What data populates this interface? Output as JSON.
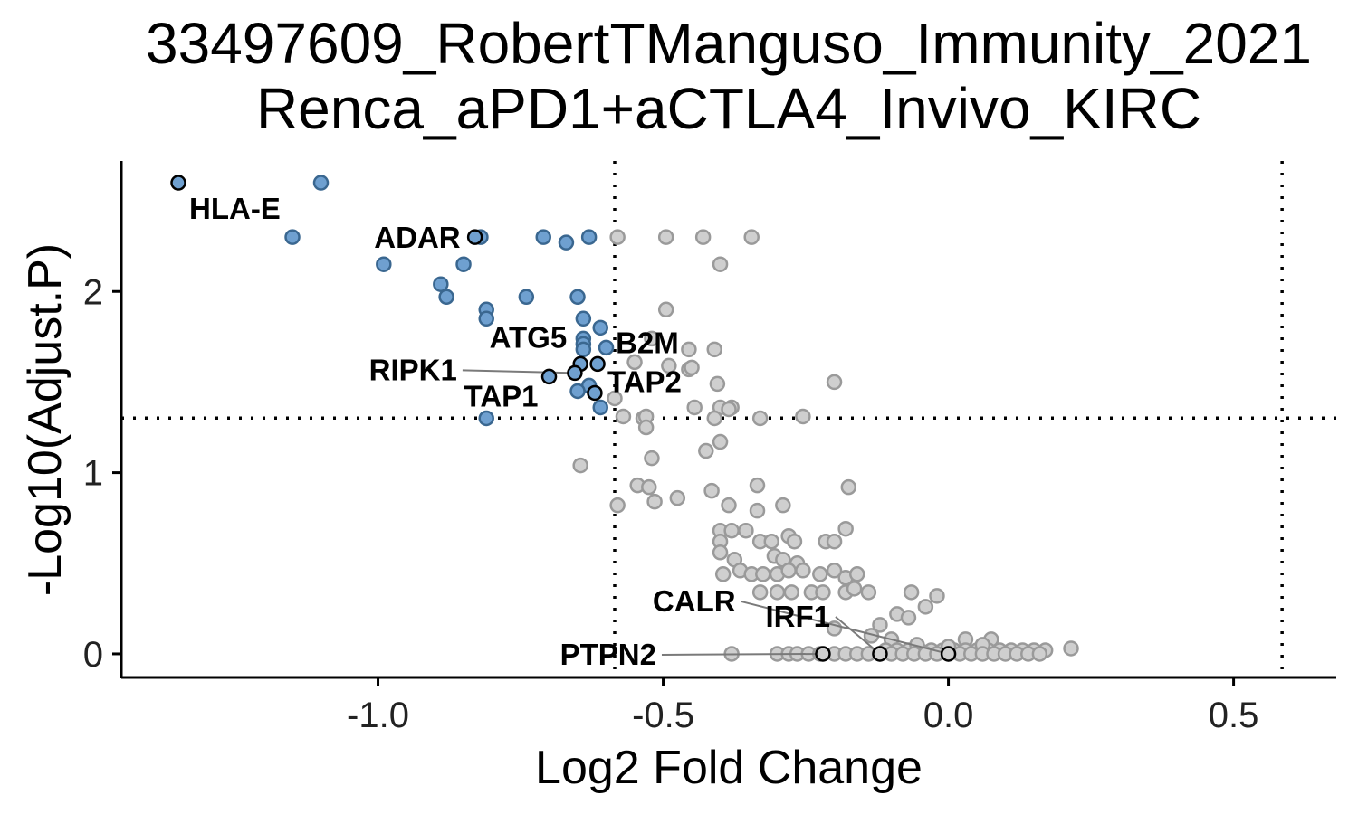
{
  "chart_data": {
    "type": "scatter",
    "title": [
      "33497609_RobertTManguso_Immunity_2021",
      "Renca_aPD1+aCTLA4_Invivo_KIRC"
    ],
    "xlabel": "Log2 Fold Change",
    "ylabel": "-Log10(Adjust.P)",
    "xlim": [
      -1.45,
      0.68
    ],
    "ylim": [
      -0.13,
      2.72
    ],
    "x_ticks": [
      -1.0,
      -0.5,
      0.0,
      0.5
    ],
    "x_tick_labels": [
      "-1.0",
      "-0.5",
      "0.0",
      "0.5"
    ],
    "y_ticks": [
      0,
      1,
      2
    ],
    "y_tick_labels": [
      "0",
      "1",
      "2"
    ],
    "thresholds": {
      "x": [
        -0.585,
        0.585
      ],
      "y": 1.301
    },
    "grid": false,
    "legend": "none",
    "colors": {
      "significant_fill": "#6fa0d0",
      "significant_stroke": "#3a6790",
      "nonsignificant_fill": "#cfcfcf",
      "nonsignificant_stroke": "#9a9a9a",
      "highlight_stroke": "#000000",
      "connector": "#7a7a7a"
    },
    "series": [
      {
        "key": "significant",
        "points": [
          [
            -1.1,
            2.6
          ],
          [
            -1.15,
            2.3
          ],
          [
            -0.82,
            2.3
          ],
          [
            -0.71,
            2.3
          ],
          [
            -0.67,
            2.27
          ],
          [
            -0.63,
            2.3
          ],
          [
            -0.99,
            2.15
          ],
          [
            -0.85,
            2.15
          ],
          [
            -0.89,
            2.04
          ],
          [
            -0.88,
            1.97
          ],
          [
            -0.74,
            1.97
          ],
          [
            -0.65,
            1.97
          ],
          [
            -0.81,
            1.9
          ],
          [
            -0.81,
            1.85
          ],
          [
            -0.64,
            1.85
          ],
          [
            -0.61,
            1.8
          ],
          [
            -0.64,
            1.74
          ],
          [
            -0.64,
            1.71
          ],
          [
            -0.6,
            1.69
          ],
          [
            -0.64,
            1.68
          ],
          [
            -0.63,
            1.48
          ],
          [
            -0.65,
            1.45
          ],
          [
            -0.61,
            1.36
          ],
          [
            -0.81,
            1.3
          ]
        ]
      },
      {
        "key": "nonsignificant",
        "points": [
          [
            -0.58,
            2.3
          ],
          [
            -0.495,
            2.3
          ],
          [
            -0.43,
            2.3
          ],
          [
            -0.345,
            2.3
          ],
          [
            -0.4,
            2.15
          ],
          [
            -0.495,
            1.9
          ],
          [
            -0.52,
            1.74
          ],
          [
            -0.455,
            1.68
          ],
          [
            -0.41,
            1.68
          ],
          [
            -0.55,
            1.61
          ],
          [
            -0.49,
            1.59
          ],
          [
            -0.455,
            1.57
          ],
          [
            -0.45,
            1.58
          ],
          [
            -0.405,
            1.49
          ],
          [
            -0.2,
            1.5
          ],
          [
            -0.585,
            1.41
          ],
          [
            -0.4,
            1.36
          ],
          [
            -0.38,
            1.36
          ],
          [
            -0.445,
            1.36
          ],
          [
            -0.385,
            1.35
          ],
          [
            -0.57,
            1.31
          ],
          [
            -0.535,
            1.3
          ],
          [
            -0.53,
            1.31
          ],
          [
            -0.41,
            1.3
          ],
          [
            -0.33,
            1.3
          ],
          [
            -0.255,
            1.31
          ],
          [
            -0.53,
            1.25
          ],
          [
            -0.4,
            1.17
          ],
          [
            -0.425,
            1.12
          ],
          [
            -0.52,
            1.08
          ],
          [
            -0.645,
            1.04
          ],
          [
            -0.545,
            0.93
          ],
          [
            -0.525,
            0.92
          ],
          [
            -0.335,
            0.93
          ],
          [
            -0.175,
            0.92
          ],
          [
            -0.515,
            0.84
          ],
          [
            -0.475,
            0.86
          ],
          [
            -0.415,
            0.9
          ],
          [
            -0.385,
            0.82
          ],
          [
            -0.29,
            0.82
          ],
          [
            -0.58,
            0.82
          ],
          [
            -0.335,
            0.79
          ],
          [
            -0.4,
            0.68
          ],
          [
            -0.38,
            0.68
          ],
          [
            -0.355,
            0.68
          ],
          [
            -0.28,
            0.65
          ],
          [
            -0.18,
            0.69
          ],
          [
            -0.4,
            0.62
          ],
          [
            -0.33,
            0.62
          ],
          [
            -0.31,
            0.62
          ],
          [
            -0.27,
            0.62
          ],
          [
            -0.215,
            0.62
          ],
          [
            -0.2,
            0.62
          ],
          [
            -0.4,
            0.56
          ],
          [
            -0.375,
            0.52
          ],
          [
            -0.305,
            0.54
          ],
          [
            -0.29,
            0.52
          ],
          [
            -0.265,
            0.5
          ],
          [
            -0.395,
            0.44
          ],
          [
            -0.365,
            0.46
          ],
          [
            -0.345,
            0.44
          ],
          [
            -0.325,
            0.44
          ],
          [
            -0.3,
            0.44
          ],
          [
            -0.28,
            0.46
          ],
          [
            -0.255,
            0.46
          ],
          [
            -0.225,
            0.44
          ],
          [
            -0.2,
            0.46
          ],
          [
            -0.18,
            0.42
          ],
          [
            -0.16,
            0.44
          ],
          [
            -0.33,
            0.34
          ],
          [
            -0.3,
            0.34
          ],
          [
            -0.275,
            0.34
          ],
          [
            -0.24,
            0.34
          ],
          [
            -0.22,
            0.34
          ],
          [
            -0.18,
            0.34
          ],
          [
            -0.165,
            0.36
          ],
          [
            -0.14,
            0.34
          ],
          [
            -0.065,
            0.34
          ],
          [
            -0.02,
            0.32
          ],
          [
            -0.04,
            0.26
          ],
          [
            -0.09,
            0.22
          ],
          [
            -0.07,
            0.2
          ],
          [
            -0.12,
            0.16
          ],
          [
            -0.2,
            0.14
          ],
          [
            -0.135,
            0.1
          ],
          [
            -0.1,
            0.08
          ],
          [
            0.03,
            0.08
          ],
          [
            0.075,
            0.08
          ],
          [
            -0.11,
            0.02
          ],
          [
            -0.09,
            0.02
          ],
          [
            -0.07,
            0.02
          ],
          [
            -0.05,
            0.02
          ],
          [
            -0.03,
            0.02
          ],
          [
            -0.01,
            0.02
          ],
          [
            0.01,
            0.02
          ],
          [
            0.03,
            0.02
          ],
          [
            0.05,
            0.02
          ],
          [
            0.07,
            0.02
          ],
          [
            0.09,
            0.02
          ],
          [
            0.11,
            0.02
          ],
          [
            0.13,
            0.02
          ],
          [
            0.15,
            0.02
          ],
          [
            0.17,
            0.02
          ],
          [
            0.215,
            0.03
          ],
          [
            0.06,
            0.05
          ],
          [
            -0.055,
            0.05
          ],
          [
            0.0,
            0.04
          ],
          [
            -0.38,
            0.0
          ],
          [
            -0.3,
            0.0
          ],
          [
            -0.28,
            0.0
          ],
          [
            -0.265,
            0.0
          ],
          [
            -0.245,
            0.0
          ],
          [
            -0.225,
            0.0
          ],
          [
            -0.2,
            0.0
          ],
          [
            -0.18,
            0.0
          ],
          [
            -0.16,
            0.0
          ],
          [
            -0.14,
            0.0
          ],
          [
            -0.12,
            0.0
          ],
          [
            -0.1,
            0.0
          ],
          [
            -0.08,
            0.0
          ],
          [
            -0.06,
            0.0
          ],
          [
            -0.04,
            0.0
          ],
          [
            -0.02,
            0.0
          ],
          [
            0.0,
            0.0
          ],
          [
            0.02,
            0.0
          ],
          [
            0.04,
            0.0
          ],
          [
            0.06,
            0.0
          ],
          [
            0.08,
            0.0
          ],
          [
            0.1,
            0.0
          ],
          [
            0.12,
            0.0
          ],
          [
            0.14,
            0.0
          ],
          [
            0.16,
            0.0
          ]
        ]
      }
    ],
    "labels": [
      {
        "text": "HLA-E",
        "x": -1.35,
        "y": 2.6,
        "sig": true,
        "anchor": "start",
        "dx": 12,
        "dy": 40,
        "connector": false
      },
      {
        "text": "ADAR",
        "x": -0.83,
        "y": 2.3,
        "sig": true,
        "anchor": "end",
        "dx": -16,
        "dy": 12,
        "connector": false
      },
      {
        "text": "ATG5",
        "x": -0.645,
        "y": 1.6,
        "sig": true,
        "anchor": "end",
        "dx": -15,
        "dy": -18,
        "connector": false
      },
      {
        "text": "B2M",
        "x": -0.615,
        "y": 1.6,
        "sig": true,
        "anchor": "start",
        "dx": 20,
        "dy": -12,
        "connector": false
      },
      {
        "text": "RIPK1",
        "x": -0.655,
        "y": 1.55,
        "sig": true,
        "anchor": "end",
        "dx": -130,
        "dy": 8,
        "connector": true
      },
      {
        "text": "TAP2",
        "x": -0.62,
        "y": 1.44,
        "sig": true,
        "anchor": "start",
        "dx": 14,
        "dy": -1,
        "connector": false
      },
      {
        "text": "TAP1",
        "x": -0.7,
        "y": 1.53,
        "sig": true,
        "anchor": "end",
        "dx": -12,
        "dy": 33,
        "connector": false
      },
      {
        "text": "CALR",
        "x": 0.0,
        "y": 0.0,
        "sig": false,
        "anchor": "end",
        "dx": -235,
        "dy": -47,
        "connector": true
      },
      {
        "text": "IRF1",
        "x": -0.12,
        "y": 0.0,
        "sig": false,
        "anchor": "end",
        "dx": -55,
        "dy": -30,
        "connector": true
      },
      {
        "text": "PTPN2",
        "x": -0.22,
        "y": 0.0,
        "sig": false,
        "anchor": "end",
        "dx": -184,
        "dy": 12,
        "connector": true
      }
    ]
  }
}
